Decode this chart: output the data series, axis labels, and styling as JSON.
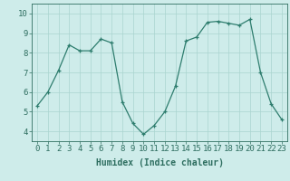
{
  "x": [
    0,
    1,
    2,
    3,
    4,
    5,
    6,
    7,
    8,
    9,
    10,
    11,
    12,
    13,
    14,
    15,
    16,
    17,
    18,
    19,
    20,
    21,
    22,
    23
  ],
  "y": [
    5.3,
    6.0,
    7.1,
    8.4,
    8.1,
    8.1,
    8.7,
    8.5,
    5.5,
    4.4,
    3.85,
    4.3,
    5.0,
    6.3,
    8.6,
    8.8,
    9.55,
    9.6,
    9.5,
    9.4,
    9.7,
    7.0,
    5.4,
    4.6
  ],
  "line_color": "#2e7d6e",
  "marker": "+",
  "marker_size": 3,
  "bg_color": "#ceecea",
  "grid_color": "#aad4cf",
  "xlabel": "Humidex (Indice chaleur)",
  "xlim": [
    -0.5,
    23.5
  ],
  "ylim": [
    3.5,
    10.5
  ],
  "yticks": [
    4,
    5,
    6,
    7,
    8,
    9,
    10
  ],
  "xticks": [
    0,
    1,
    2,
    3,
    4,
    5,
    6,
    7,
    8,
    9,
    10,
    11,
    12,
    13,
    14,
    15,
    16,
    17,
    18,
    19,
    20,
    21,
    22,
    23
  ],
  "tick_color": "#2e6e60",
  "label_color": "#2e6e60",
  "xlabel_fontsize": 7,
  "tick_fontsize": 6.5,
  "linewidth": 0.9,
  "markeredgewidth": 0.9
}
